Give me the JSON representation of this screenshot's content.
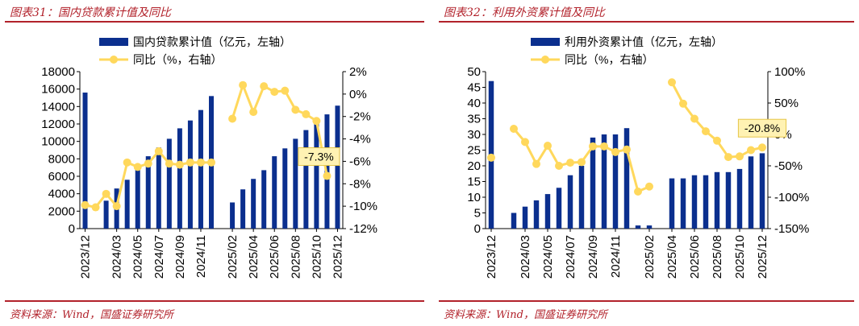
{
  "panels": [
    {
      "title": "图表31：国内贷款累计值及同比",
      "source": "资料来源：Wind，国盛证券研究所"
    },
    {
      "title": "图表32：利用外资累计值及同比",
      "source": "资料来源：Wind，国盛证券研究所"
    }
  ],
  "colors": {
    "bar": "#0b2f8e",
    "line": "#ffd85c",
    "accent": "#b2222b",
    "callout_bg": "#fff2b3"
  },
  "chart_data": [
    {
      "type": "bar+line",
      "title": "国内贷款累计值及同比",
      "legend": [
        "国内贷款累计值（亿元，左轴）",
        "同比（%，右轴）"
      ],
      "categories": [
        "2023/12",
        "2024/01",
        "2024/02",
        "2024/03",
        "2024/04",
        "2024/05",
        "2024/06",
        "2024/07",
        "2024/08",
        "2024/09",
        "2024/10",
        "2024/11",
        "2024/12",
        "2025/01",
        "2025/02",
        "2025/03",
        "2025/04",
        "2025/05",
        "2025/06",
        "2025/07",
        "2025/08",
        "2025/09",
        "2025/10",
        "2025/11",
        "2025/12"
      ],
      "tick_labels": [
        "2023/12",
        "2024/03",
        "2024/05",
        "2024/07",
        "2024/09",
        "2024/11",
        "2025/02",
        "2025/04",
        "2025/06",
        "2025/08",
        "2025/10",
        "2025/12"
      ],
      "bars": [
        15600,
        null,
        3200,
        4600,
        5600,
        7000,
        8300,
        9300,
        10300,
        11500,
        12400,
        13600,
        15200,
        null,
        3000,
        4500,
        5700,
        6700,
        8300,
        9200,
        10300,
        11300,
        12200,
        13100,
        14100
      ],
      "line": [
        -9.9,
        -10.1,
        -8.9,
        -10,
        -6.1,
        -6.5,
        -6.2,
        -5.1,
        -6.2,
        -6.3,
        -6.1,
        -6.1,
        -6.1,
        null,
        -2.2,
        0.8,
        -1.6,
        0.7,
        0.2,
        0.3,
        -1.4,
        -1.8,
        -2.4,
        -7.3,
        null
      ],
      "y_left": {
        "min": 0,
        "max": 18000,
        "ticks": [
          "0",
          "2000",
          "4000",
          "6000",
          "8000",
          "10000",
          "12000",
          "14000",
          "16000",
          "18000"
        ]
      },
      "y_right": {
        "min": -12,
        "max": 2,
        "ticks": [
          "-12%",
          "-10%",
          "-8%",
          "-6%",
          "-4%",
          "-2%",
          "0%",
          "2%"
        ]
      },
      "annotation": {
        "index": 23,
        "label": "-7.3%"
      }
    },
    {
      "type": "bar+line",
      "title": "利用外资累计值及同比",
      "legend": [
        "利用外资累计值（亿元，左轴）",
        "同比（%，右轴）"
      ],
      "categories": [
        "2023/12",
        "2024/01",
        "2024/02",
        "2024/03",
        "2024/04",
        "2024/05",
        "2024/06",
        "2024/07",
        "2024/08",
        "2024/09",
        "2024/10",
        "2024/11",
        "2024/12",
        "2025/01",
        "2025/02",
        "2025/03",
        "2025/04",
        "2025/05",
        "2025/06",
        "2025/07",
        "2025/08",
        "2025/09",
        "2025/10",
        "2025/11",
        "2025/12"
      ],
      "tick_labels": [
        "2023/12",
        "2024/03",
        "2024/05",
        "2024/07",
        "2024/09",
        "2024/11",
        "2025/02",
        "2025/04",
        "2025/06",
        "2025/08",
        "2025/10",
        "2025/12"
      ],
      "bars": [
        47,
        null,
        5,
        7,
        9,
        11,
        13,
        17,
        20,
        29,
        30,
        30,
        32,
        1,
        1,
        null,
        16,
        16,
        17,
        17,
        18,
        18,
        19,
        23,
        24
      ],
      "line": [
        -37,
        null,
        9,
        -12,
        -47,
        -18,
        -50,
        -45,
        -44,
        -19,
        -19,
        -28,
        -24,
        -91,
        -83,
        null,
        83,
        49,
        25,
        5,
        -10,
        -36,
        -35,
        -25,
        -20.8
      ],
      "y_left": {
        "min": 0,
        "max": 50,
        "ticks": [
          "0",
          "5",
          "10",
          "15",
          "20",
          "25",
          "30",
          "35",
          "40",
          "45",
          "50"
        ]
      },
      "y_right": {
        "min": -150,
        "max": 100,
        "ticks": [
          "-150%",
          "-100%",
          "-50%",
          "0%",
          "50%",
          "100%"
        ]
      },
      "annotation": {
        "index": 24,
        "label": "-20.8%"
      }
    }
  ]
}
